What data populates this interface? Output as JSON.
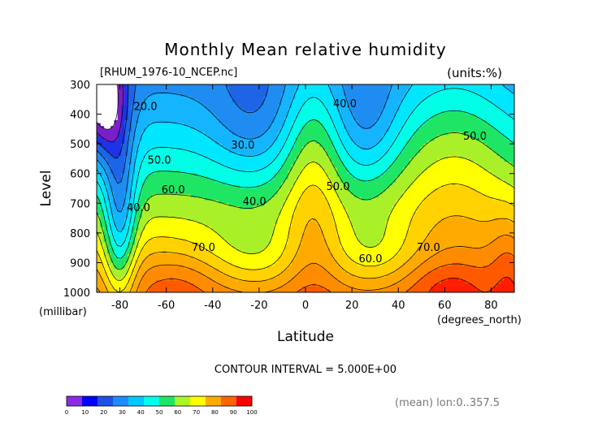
{
  "chart_data": {
    "type": "contour",
    "title": "Monthly Mean relative humidity",
    "subtitle_left": "[RHUM_1976-10_NCEP.nc]",
    "subtitle_right": "(units:%)",
    "xlabel": "Latitude",
    "xunit": "(degrees_north)",
    "ylabel": "Level",
    "yunit": "(millibar)",
    "xlim": [
      -90,
      90
    ],
    "ylim": [
      1000,
      300
    ],
    "x_ticks": [
      -80,
      -60,
      -40,
      -20,
      0,
      20,
      40,
      60,
      80
    ],
    "x_tick_labels": [
      "-80",
      "-60",
      "-40",
      "-20",
      "0",
      "20",
      "40",
      "60",
      "80"
    ],
    "y_ticks": [
      300,
      400,
      500,
      600,
      700,
      800,
      900,
      1000
    ],
    "y_tick_labels": [
      "300",
      "400",
      "500",
      "600",
      "700",
      "800",
      "900",
      "1000"
    ],
    "contour_interval_text": "CONTOUR INTERVAL = 5.000E+00",
    "footer_right": "(mean) lon:0..357.5",
    "contour_labels": [
      {
        "text": "20.0",
        "x": -69,
        "y": 375
      },
      {
        "text": "30.0",
        "x": -27,
        "y": 505
      },
      {
        "text": "40.0",
        "x": 17,
        "y": 365
      },
      {
        "text": "40.0",
        "x": -72,
        "y": 715
      },
      {
        "text": "40.0",
        "x": -22,
        "y": 695
      },
      {
        "text": "50.0",
        "x": -63,
        "y": 555
      },
      {
        "text": "50.0",
        "x": 14,
        "y": 645
      },
      {
        "text": "50.0",
        "x": 73,
        "y": 475
      },
      {
        "text": "60.0",
        "x": -57,
        "y": 655
      },
      {
        "text": "60.0",
        "x": 28,
        "y": 888
      },
      {
        "text": "70.0",
        "x": -44,
        "y": 850
      },
      {
        "text": "70.0",
        "x": 53,
        "y": 850
      }
    ],
    "colorbar": {
      "ticks": [
        "0",
        "10",
        "20",
        "30",
        "40",
        "50",
        "60",
        "70",
        "80",
        "90",
        "100"
      ],
      "colors": [
        "#8a2be2",
        "#0000ff",
        "#1e50e6",
        "#1e8cff",
        "#00c8ff",
        "#00fff0",
        "#1ee664",
        "#aaf528",
        "#ffff00",
        "#ffaa00",
        "#ff6400",
        "#ff0000"
      ]
    },
    "levels": [
      {
        "value": 15,
        "color": "#7a1fc8"
      },
      {
        "value": 20,
        "color": "#1e32e6"
      },
      {
        "value": 25,
        "color": "#1e64e6"
      },
      {
        "value": 30,
        "color": "#1e8cf0"
      },
      {
        "value": 35,
        "color": "#14b4ff"
      },
      {
        "value": 40,
        "color": "#00e6ff"
      },
      {
        "value": 45,
        "color": "#00ffe6"
      },
      {
        "value": 50,
        "color": "#1ee664"
      },
      {
        "value": 55,
        "color": "#aaf028"
      },
      {
        "value": 60,
        "color": "#ffff00"
      },
      {
        "value": 65,
        "color": "#ffd200"
      },
      {
        "value": 70,
        "color": "#ffaa00"
      },
      {
        "value": 75,
        "color": "#ff8c00"
      },
      {
        "value": 80,
        "color": "#ff5a00"
      },
      {
        "value": 85,
        "color": "#ff1e00"
      }
    ]
  }
}
